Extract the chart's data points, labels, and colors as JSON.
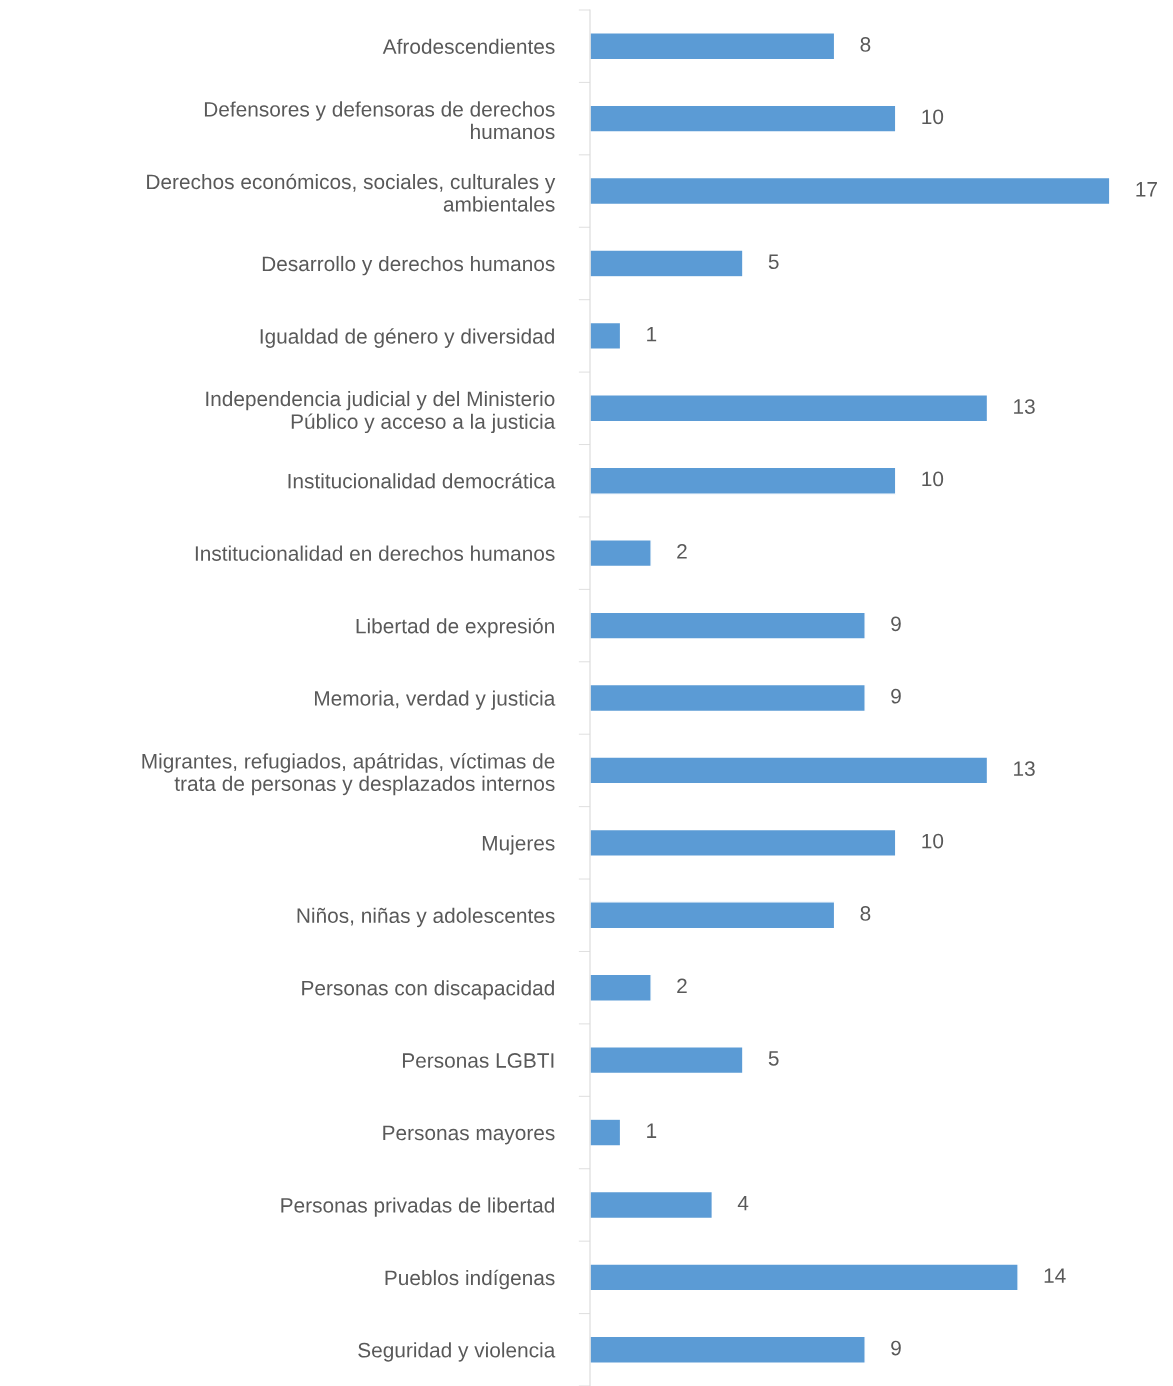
{
  "chart_data": {
    "type": "bar",
    "orientation": "horizontal",
    "data_labels": true,
    "grid": false,
    "legend": false,
    "color": "#5b9bd5",
    "categories": [
      "Afrodescendientes",
      "Defensores y defensoras de derechos\nhumanos",
      "Derechos económicos, sociales, culturales y\nambientales",
      "Desarrollo y derechos humanos",
      "Igualdad de género y diversidad",
      "Independencia judicial y del Ministerio\nPúblico y acceso a la justicia",
      "Institucionalidad democrática",
      "Institucionalidad en derechos humanos",
      "Libertad de expresión",
      "Memoria, verdad y justicia",
      "Migrantes, refugiados, apátridas, víctimas de\ntrata de personas y desplazados internos",
      "Mujeres",
      "Niños, niñas y adolescentes",
      "Personas con discapacidad",
      "Personas LGBTI",
      "Personas mayores",
      "Personas privadas de libertad",
      "Pueblos indígenas",
      "Seguridad y violencia"
    ],
    "values": [
      8,
      10,
      17,
      5,
      1,
      13,
      10,
      2,
      9,
      9,
      13,
      10,
      8,
      2,
      5,
      1,
      4,
      14,
      9
    ]
  }
}
